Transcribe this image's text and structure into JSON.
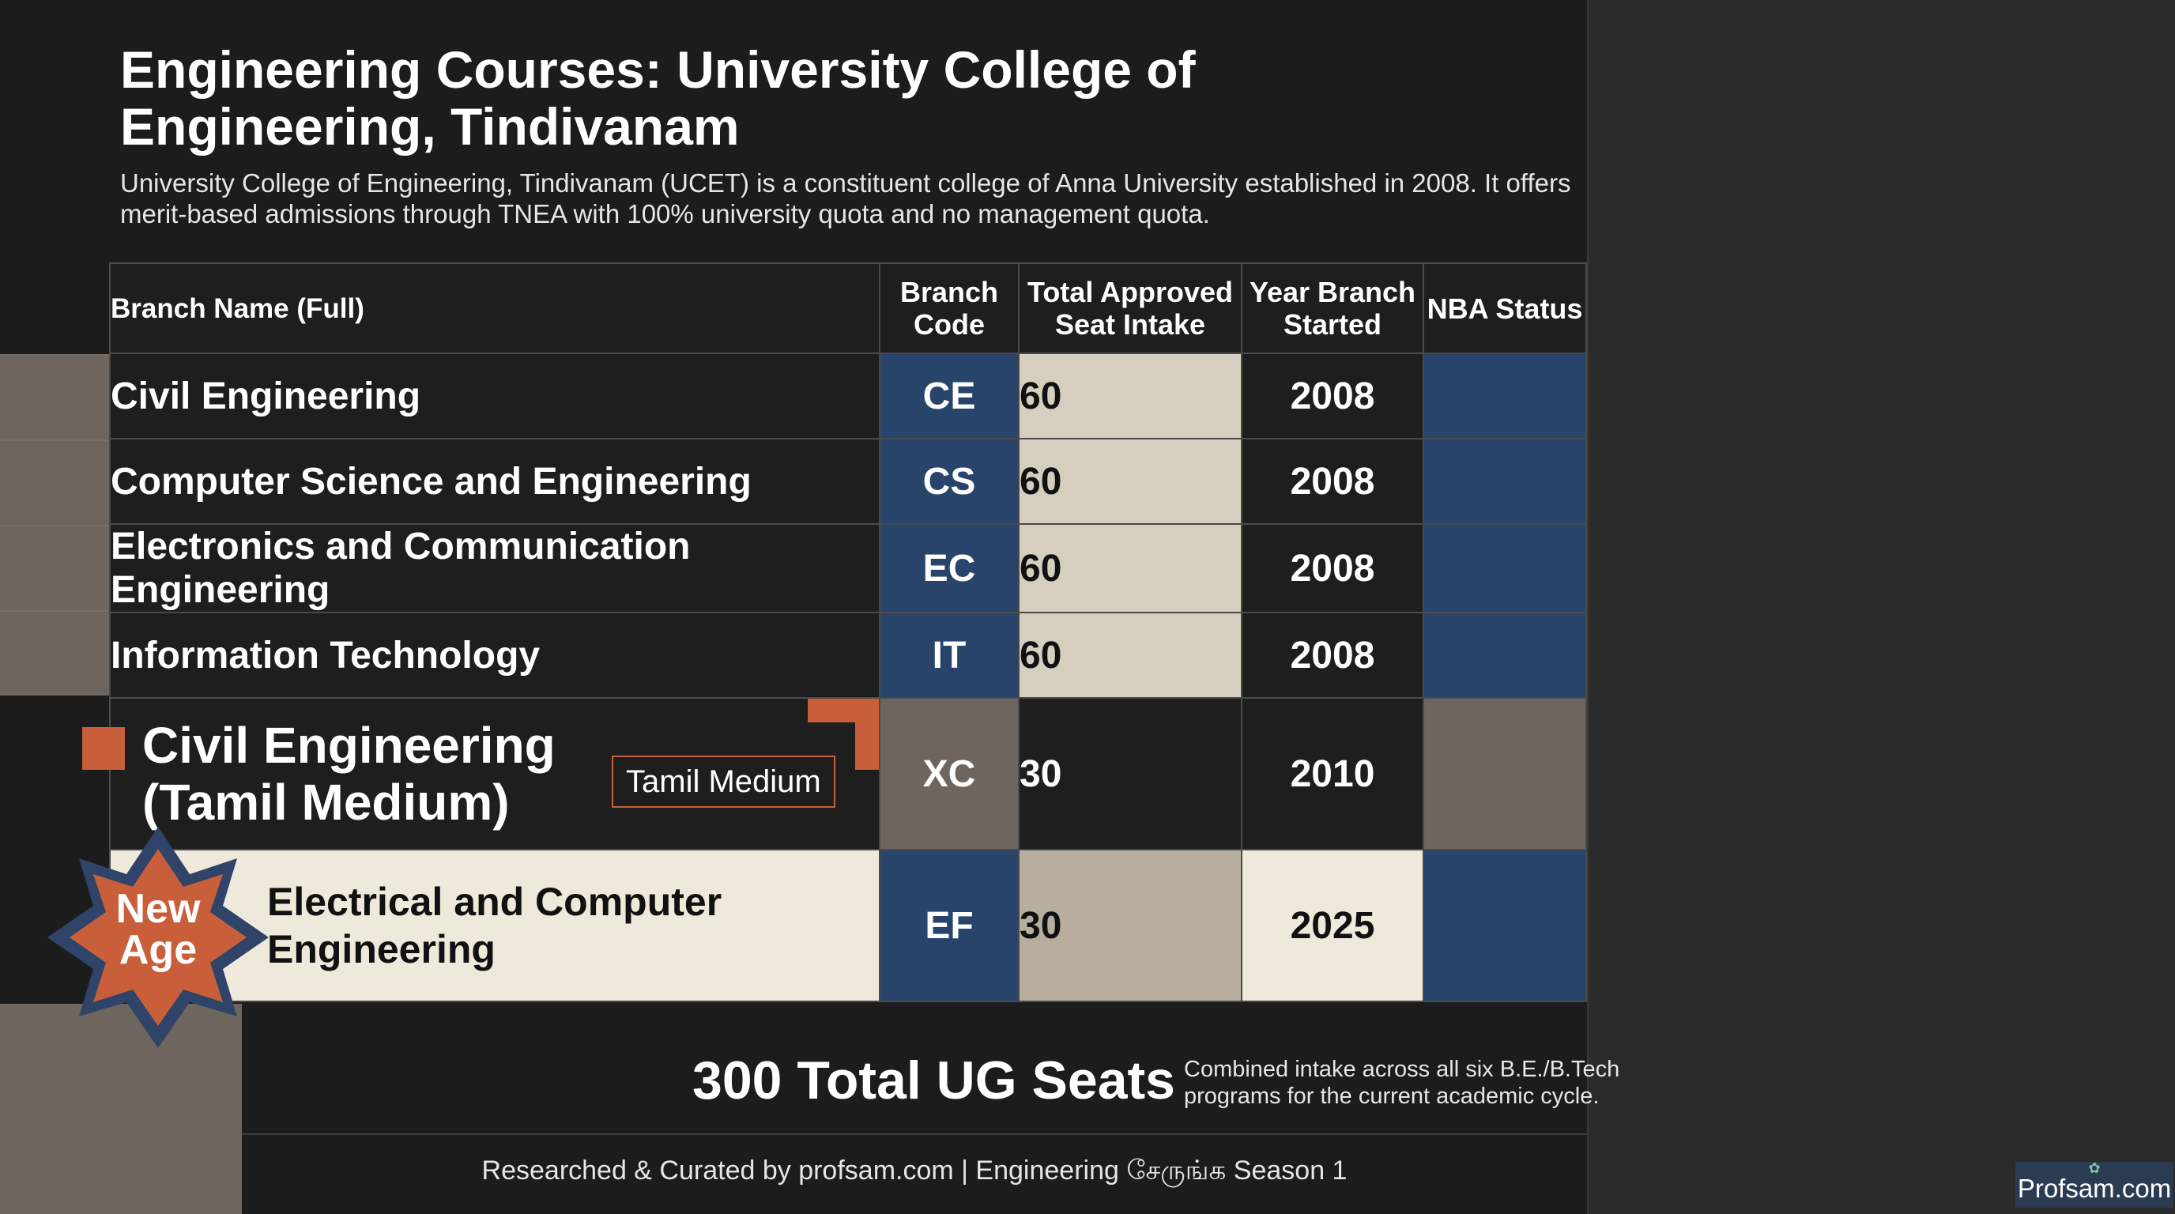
{
  "title": "Engineering Courses: University College of Engineering, Tindivanam",
  "subtitle": "University College of Engineering, Tindivanam (UCET) is a constituent college of Anna University established in 2008. It offers merit-based admissions through TNEA with 100% university quota and no management quota.",
  "table": {
    "headers": [
      "Branch Name (Full)",
      "Branch Code",
      "Total Approved Seat Intake",
      "Year Branch Started",
      "NBA Status"
    ],
    "rows": [
      {
        "name": "Civil Engineering",
        "code": "CE",
        "intake": "60",
        "year": "2008",
        "nba": ""
      },
      {
        "name": "Computer Science and Engineering",
        "code": "CS",
        "intake": "60",
        "year": "2008",
        "nba": ""
      },
      {
        "name": "Electronics and Communication Engineering",
        "code": "EC",
        "intake": "60",
        "year": "2008",
        "nba": ""
      },
      {
        "name": "Information Technology",
        "code": "IT",
        "intake": "60",
        "year": "2008",
        "nba": ""
      },
      {
        "name": "Civil Engineering (Tamil Medium)",
        "badge": "Tamil Medium",
        "code": "XC",
        "intake": "30",
        "year": "2010",
        "nba": ""
      },
      {
        "name": "Electrical and Computer Engineering",
        "badge": "New Age",
        "code": "EF",
        "intake": "30",
        "year": "2025",
        "nba": ""
      }
    ]
  },
  "total": "300 Total UG Seats",
  "total_note": "Combined intake across all six B.E./B.Tech programs for the current academic cycle.",
  "footer": "Researched & Curated by profsam.com | Engineering சேருங்க Season 1",
  "brand": "Profsam.com",
  "colors": {
    "navy": "#28446b",
    "beige": "#d6cfbf",
    "orange": "#c85f3a",
    "taupe": "#6e665e",
    "cream": "#efe9dc"
  }
}
